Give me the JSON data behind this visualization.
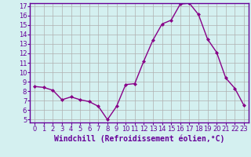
{
  "x": [
    0,
    1,
    2,
    3,
    4,
    5,
    6,
    7,
    8,
    9,
    10,
    11,
    12,
    13,
    14,
    15,
    16,
    17,
    18,
    19,
    20,
    21,
    22,
    23
  ],
  "y": [
    8.5,
    8.4,
    8.1,
    7.1,
    7.4,
    7.1,
    6.9,
    6.4,
    5.0,
    6.4,
    8.7,
    8.8,
    11.2,
    13.4,
    15.1,
    15.5,
    17.2,
    17.3,
    16.1,
    13.5,
    12.1,
    9.4,
    8.3,
    6.5
  ],
  "line_color": "#880088",
  "marker": "D",
  "marker_size": 2.0,
  "bg_color": "#d4f0f0",
  "grid_color": "#b0b0b0",
  "xlabel": "Windchill (Refroidissement éolien,°C)",
  "xlabel_fontsize": 7,
  "ylim_min": 5,
  "ylim_max": 17,
  "xlim_min": 0,
  "xlim_max": 23,
  "yticks": [
    5,
    6,
    7,
    8,
    9,
    10,
    11,
    12,
    13,
    14,
    15,
    16,
    17
  ],
  "xticks": [
    0,
    1,
    2,
    3,
    4,
    5,
    6,
    7,
    8,
    9,
    10,
    11,
    12,
    13,
    14,
    15,
    16,
    17,
    18,
    19,
    20,
    21,
    22,
    23
  ],
  "tick_fontsize": 6,
  "label_color": "#660099",
  "spine_color": "#660099",
  "linewidth": 1.0
}
